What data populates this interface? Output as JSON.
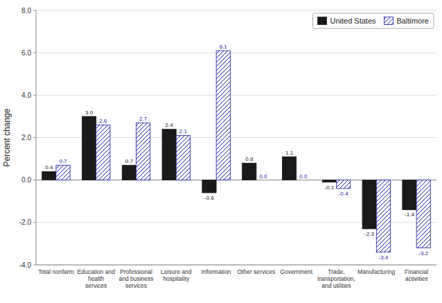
{
  "chart_data": {
    "type": "bar",
    "categories": [
      "Total nonfarm",
      "Education and\nhealth\nservices",
      "Professional\nand business\nservices",
      "Leisure and\nhospitality",
      "Information",
      "Other services",
      "Government",
      "Trade,\ntransportation,\nand utilities",
      "Manufacturing",
      "Financial\nactivities"
    ],
    "ylabel": "Percent change",
    "series": [
      {
        "name": "United States",
        "color": "#1a1a1a",
        "values": [
          0.4,
          3.0,
          0.7,
          2.4,
          -0.6,
          0.8,
          1.1,
          -0.1,
          -2.3,
          -1.4
        ],
        "value_labels": [
          "0.4",
          "3.0",
          "0.7",
          "2.4",
          "-0.6",
          "0.8",
          "1.1",
          "-0.1",
          "-2.3",
          "-1.4"
        ]
      },
      {
        "name": "Baltimore",
        "color": "#1a1aaa",
        "values": [
          0.7,
          2.6,
          2.7,
          2.1,
          6.1,
          0.0,
          0.0,
          -0.4,
          -3.4,
          -3.2
        ],
        "value_labels": [
          "0.7",
          "2.6",
          "2.7",
          "2.1",
          "6.1",
          "0.0",
          "0.0",
          "-0.4",
          "-3.4",
          "-3.2"
        ]
      }
    ],
    "ylim": [
      -4.0,
      8.0
    ],
    "yticks": [
      {
        "value": -4.0,
        "label": "-4.0"
      },
      {
        "value": -2.0,
        "label": "-2.0"
      },
      {
        "value": 0.0,
        "label": "0.0"
      },
      {
        "value": 2.0,
        "label": "2.0"
      },
      {
        "value": 4.0,
        "label": "4.0"
      },
      {
        "value": 6.0,
        "label": "6.0"
      },
      {
        "value": 8.0,
        "label": "8.0"
      }
    ],
    "grid": true,
    "legend": "upper right",
    "data_labels": true
  }
}
